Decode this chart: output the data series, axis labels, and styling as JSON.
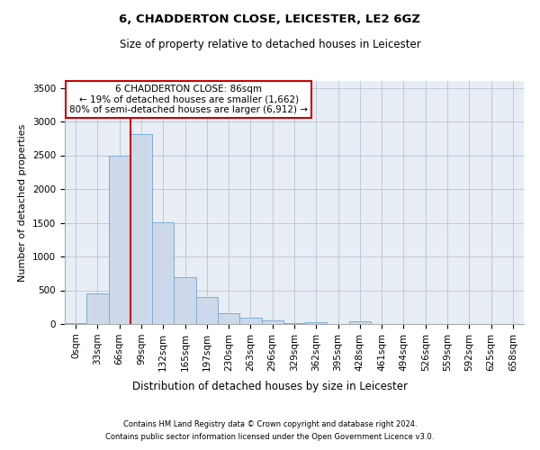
{
  "title1": "6, CHADDERTON CLOSE, LEICESTER, LE2 6GZ",
  "title2": "Size of property relative to detached houses in Leicester",
  "xlabel": "Distribution of detached houses by size in Leicester",
  "ylabel": "Number of detached properties",
  "bar_labels": [
    "0sqm",
    "33sqm",
    "66sqm",
    "99sqm",
    "132sqm",
    "165sqm",
    "197sqm",
    "230sqm",
    "263sqm",
    "296sqm",
    "329sqm",
    "362sqm",
    "395sqm",
    "428sqm",
    "461sqm",
    "494sqm",
    "526sqm",
    "559sqm",
    "592sqm",
    "625sqm",
    "658sqm"
  ],
  "bar_values": [
    20,
    460,
    2500,
    2820,
    1510,
    700,
    400,
    160,
    90,
    55,
    20,
    30,
    5,
    45,
    5,
    5,
    0,
    0,
    0,
    0,
    0
  ],
  "bar_color": "#cdd9ea",
  "bar_edge_color": "#7bafd4",
  "vline_x": 2.5,
  "vline_color": "#cc0000",
  "ylim": [
    0,
    3600
  ],
  "yticks": [
    0,
    500,
    1000,
    1500,
    2000,
    2500,
    3000,
    3500
  ],
  "annotation_text": "6 CHADDERTON CLOSE: 86sqm\n← 19% of detached houses are smaller (1,662)\n80% of semi-detached houses are larger (6,912) →",
  "annotation_box_color": "#ffffff",
  "annotation_box_edge": "#cc0000",
  "footer_line1": "Contains HM Land Registry data © Crown copyright and database right 2024.",
  "footer_line2": "Contains public sector information licensed under the Open Government Licence v3.0.",
  "plot_bg_color": "#e8eef5",
  "title1_fontsize": 9.5,
  "title2_fontsize": 8.5,
  "ylabel_fontsize": 8,
  "xlabel_fontsize": 8.5,
  "tick_fontsize": 7.5,
  "annotation_fontsize": 7.5,
  "footer_fontsize": 6
}
